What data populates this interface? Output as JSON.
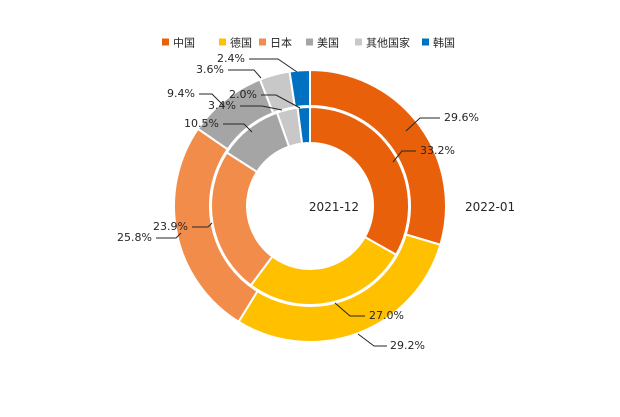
{
  "chart_data": {
    "type": "pie",
    "variant": "nested-donut",
    "title": "",
    "legend": {
      "placement": "top-center",
      "entries": [
        "中国",
        "德国",
        "日本",
        "美国",
        "其他国家",
        "韩国"
      ]
    },
    "categories": [
      "中国",
      "德国",
      "日本",
      "美国",
      "其他国家",
      "韩国"
    ],
    "colors": [
      "#E8600A",
      "#FFC000",
      "#F28C4A",
      "#A5A5A5",
      "#C8C8C8",
      "#0070C0"
    ],
    "series": [
      {
        "name": "2022-01",
        "ring": "outer",
        "values": [
          29.6,
          29.2,
          25.8,
          9.4,
          3.6,
          2.4
        ],
        "labels": [
          "29.6%",
          "29.2%",
          "25.8%",
          "9.4%",
          "3.6%",
          "2.4%"
        ]
      },
      {
        "name": "2021-12",
        "ring": "inner",
        "values": [
          33.2,
          27.0,
          23.9,
          10.5,
          3.4,
          2.0
        ],
        "labels": [
          "33.2%",
          "27.0%",
          "23.9%",
          "10.5%",
          "3.4%",
          "2.0%"
        ]
      }
    ]
  }
}
